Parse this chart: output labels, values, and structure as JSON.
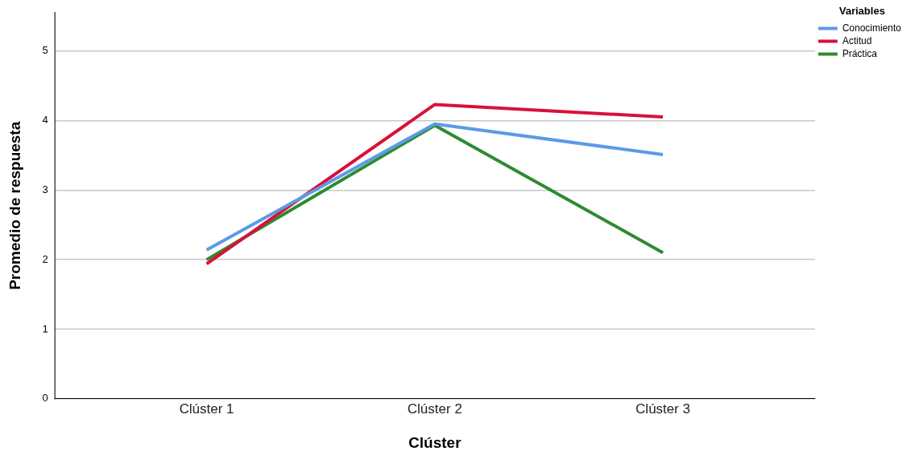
{
  "chart_data": {
    "type": "line",
    "xlabel": "Clúster",
    "ylabel": "Promedio de respuesta",
    "legend_title": "Variables",
    "categories": [
      "Clúster 1",
      "Clúster 2",
      "Clúster 3"
    ],
    "series": [
      {
        "name": "Conocimiento",
        "color": "#5b9be6",
        "values": [
          2.14,
          3.95,
          3.51
        ]
      },
      {
        "name": "Actitud",
        "color": "#d8113a",
        "values": [
          1.94,
          4.23,
          4.05
        ]
      },
      {
        "name": "Práctica",
        "color": "#2e8b2e",
        "values": [
          2.0,
          3.93,
          2.1
        ]
      }
    ],
    "ylim": [
      0,
      5.55
    ],
    "yticks": [
      0,
      1,
      2,
      3,
      4,
      5
    ],
    "grid": "y",
    "legend": "top right",
    "marker": "none",
    "line_style": "solid"
  }
}
